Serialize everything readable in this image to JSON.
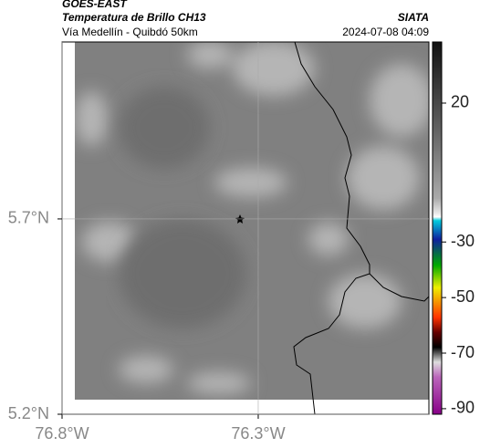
{
  "header": {
    "satellite": "GOES-EAST",
    "title": "Temperatura de Brillo CH13",
    "subtitle": "Vía Medellín - Quibdó 50km",
    "source": "SIATA",
    "datetime": "2024-07-08 04:09"
  },
  "map": {
    "xlim": [
      -76.8,
      -75.865
    ],
    "ylim": [
      5.2,
      6.153
    ],
    "xticks": [
      {
        "value": -76.8,
        "label": "76.8°W"
      },
      {
        "value": -76.3,
        "label": "76.3°W"
      }
    ],
    "yticks": [
      {
        "value": 5.7,
        "label": "5.7°N"
      },
      {
        "value": 5.2,
        "label": "5.2°N"
      }
    ]
  },
  "colorbar": {
    "clim": [
      -92,
      42
    ],
    "ticks": [
      20,
      -30,
      -50,
      -70,
      -90
    ]
  }
}
